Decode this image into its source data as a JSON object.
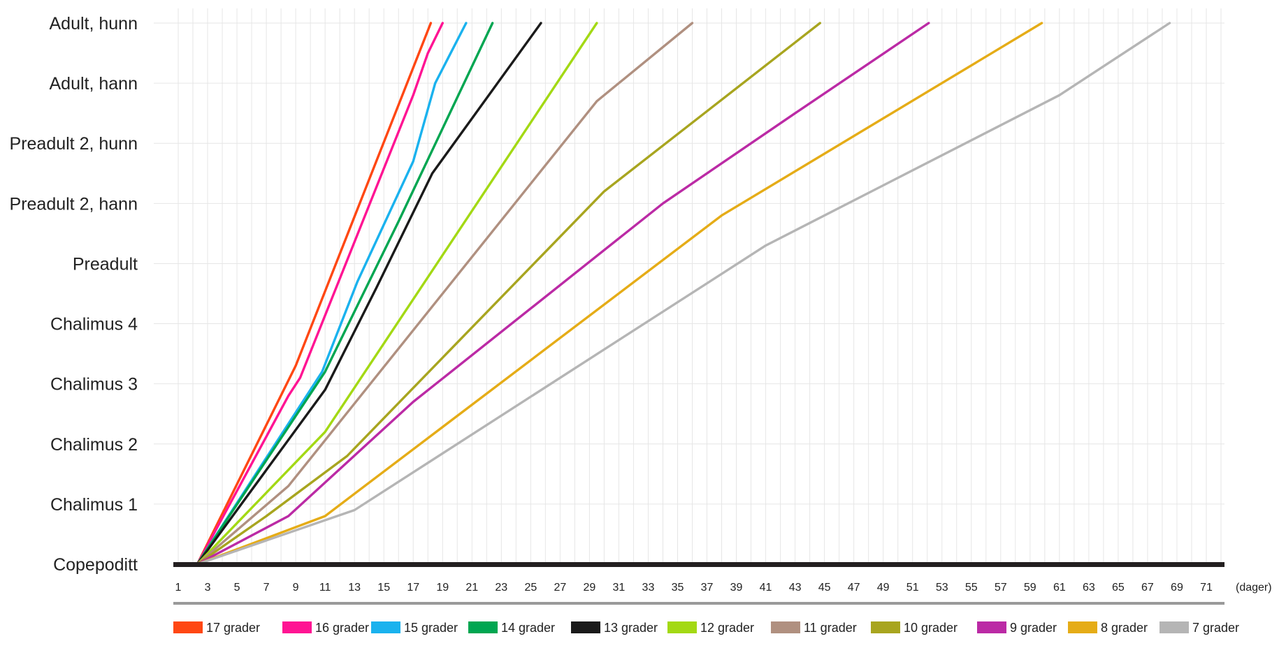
{
  "chart_data": {
    "type": "line",
    "title": "",
    "xlabel": "",
    "ylabel": "",
    "x_unit": "(dager)",
    "xlim": [
      1,
      72
    ],
    "x_ticks": [
      1,
      3,
      5,
      7,
      9,
      11,
      13,
      15,
      17,
      19,
      21,
      23,
      25,
      27,
      29,
      31,
      33,
      35,
      37,
      39,
      41,
      43,
      45,
      47,
      49,
      51,
      53,
      55,
      57,
      59,
      61,
      63,
      65,
      67,
      69,
      71
    ],
    "y_categories": [
      "Copepoditt",
      "Chalimus 1",
      "Chalimus 2",
      "Chalimus 3",
      "Chalimus 4",
      "Preadult",
      "Preadult 2, hann",
      "Preadult 2, hunn",
      "Adult, hann",
      "Adult, hunn"
    ],
    "grid": true,
    "legend_position": "bottom",
    "series": [
      {
        "name": "17 grader",
        "color": "#ff4713",
        "x": [
          2.3,
          9.0,
          18.2
        ],
        "y": [
          0,
          3.3,
          9.0
        ]
      },
      {
        "name": "16 grader",
        "color": "#ff1493",
        "x": [
          2.3,
          8.5,
          9.3,
          17.0,
          18.0,
          19.0
        ],
        "y": [
          0,
          2.8,
          3.1,
          7.8,
          8.5,
          9.0
        ]
      },
      {
        "name": "15 grader",
        "color": "#1ab2ee",
        "x": [
          2.3,
          10.8,
          13.2,
          17.0,
          18.5,
          20.6
        ],
        "y": [
          0,
          3.2,
          4.7,
          6.7,
          8.0,
          9.0
        ]
      },
      {
        "name": "14 grader",
        "color": "#00a651",
        "x": [
          2.3,
          11.0,
          16.0,
          22.4
        ],
        "y": [
          0,
          3.2,
          5.7,
          9.0
        ]
      },
      {
        "name": "13 grader",
        "color": "#1a1a1a",
        "x": [
          2.3,
          11.0,
          14.5,
          18.3,
          25.7
        ],
        "y": [
          0,
          2.9,
          4.6,
          6.5,
          9.0
        ]
      },
      {
        "name": "12 grader",
        "color": "#a3d914",
        "x": [
          2.3,
          11.0,
          29.5
        ],
        "y": [
          0,
          2.2,
          9.0
        ]
      },
      {
        "name": "11 grader",
        "color": "#b09080",
        "x": [
          2.3,
          8.5,
          29.5,
          36.0
        ],
        "y": [
          0,
          1.3,
          7.7,
          9.0
        ]
      },
      {
        "name": "10 grader",
        "color": "#a8a51f",
        "x": [
          2.3,
          7.0,
          12.5,
          30.0,
          44.7
        ],
        "y": [
          0,
          0.8,
          1.8,
          6.2,
          9.0
        ]
      },
      {
        "name": "9 grader",
        "color": "#bb2aa5",
        "x": [
          2.3,
          8.5,
          17.0,
          34.0,
          43.0,
          52.1
        ],
        "y": [
          0,
          0.8,
          2.7,
          6.0,
          7.5,
          9.0
        ]
      },
      {
        "name": "8 grader",
        "color": "#e5ac17",
        "x": [
          2.3,
          11.0,
          38.0,
          59.8
        ],
        "y": [
          0,
          0.8,
          5.8,
          9.0
        ]
      },
      {
        "name": "7 grader",
        "color": "#b5b5b5",
        "x": [
          2.3,
          13.0,
          41.0,
          61.0,
          68.5
        ],
        "y": [
          0,
          0.9,
          5.3,
          7.8,
          9.0
        ]
      }
    ]
  }
}
